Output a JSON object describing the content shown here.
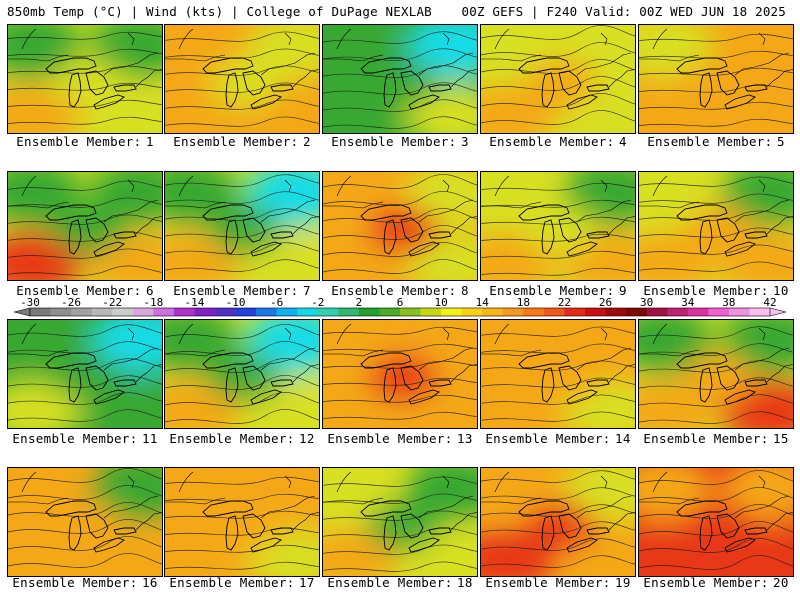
{
  "header": {
    "left": "850mb Temp (°C) | Wind (kts) | College of DuPage NEXLAB",
    "right": "00Z GEFS | F240 Valid: 00Z WED JUN 18 2025"
  },
  "member_label": "Ensemble Member:",
  "colorbar": {
    "ticks": [
      "-30",
      "-26",
      "-22",
      "-18",
      "-14",
      "-10",
      "-6",
      "-2",
      "2",
      "6",
      "10",
      "14",
      "18",
      "22",
      "26",
      "30",
      "34",
      "38",
      "42"
    ],
    "colors": [
      "#7a7a7a",
      "#8e8e8e",
      "#a2a2a2",
      "#b8b8b8",
      "#cccccc",
      "#d8a8e0",
      "#d070e0",
      "#b030d0",
      "#8020c8",
      "#5030c8",
      "#2040e0",
      "#1a78e8",
      "#12b0ec",
      "#18d8e8",
      "#30d0b0",
      "#30b870",
      "#22a030",
      "#4cab28",
      "#88c020",
      "#c8d810",
      "#f4f01c",
      "#f8d018",
      "#f8b418",
      "#f89820",
      "#f87818",
      "#f05818",
      "#e82818",
      "#c81010",
      "#a00808",
      "#800808",
      "#a01040",
      "#c02070",
      "#e030a0",
      "#f060d0",
      "#f090e0",
      "#f8c0f0"
    ]
  },
  "members": [
    {
      "id": "1",
      "dom": "Y",
      "tl": "G",
      "tr": "G",
      "bl": "O",
      "br": "Y",
      "cm": "Y"
    },
    {
      "id": "2",
      "dom": "O",
      "tl": "O",
      "tr": "Y",
      "bl": "O",
      "br": "O",
      "cm": "Y"
    },
    {
      "id": "3",
      "dom": "G",
      "tl": "G",
      "tr": "C",
      "bl": "G",
      "br": "Y",
      "cm": "G"
    },
    {
      "id": "4",
      "dom": "Y",
      "tl": "Y",
      "tr": "Y",
      "bl": "O",
      "br": "Y",
      "cm": "O"
    },
    {
      "id": "5",
      "dom": "O",
      "tl": "Y",
      "tr": "O",
      "bl": "O",
      "br": "O",
      "cm": "O"
    },
    {
      "id": "6",
      "dom": "Y",
      "tl": "G",
      "tr": "G",
      "bl": "R",
      "br": "O",
      "cm": "G"
    },
    {
      "id": "7",
      "dom": "Y",
      "tl": "G",
      "tr": "C",
      "bl": "O",
      "br": "Y",
      "cm": "G"
    },
    {
      "id": "8",
      "dom": "O",
      "tl": "O",
      "tr": "Y",
      "bl": "O",
      "br": "Y",
      "cm": "R"
    },
    {
      "id": "9",
      "dom": "Y",
      "tl": "Y",
      "tr": "G",
      "bl": "O",
      "br": "O",
      "cm": "Y"
    },
    {
      "id": "10",
      "dom": "Y",
      "tl": "Y",
      "tr": "G",
      "bl": "O",
      "br": "O",
      "cm": "O"
    },
    {
      "id": "11",
      "dom": "G",
      "tl": "G",
      "tr": "C",
      "bl": "Y",
      "br": "G",
      "cm": "G"
    },
    {
      "id": "12",
      "dom": "Y",
      "tl": "G",
      "tr": "C",
      "bl": "O",
      "br": "Y",
      "cm": "G"
    },
    {
      "id": "13",
      "dom": "O",
      "tl": "O",
      "tr": "O",
      "bl": "O",
      "br": "O",
      "cm": "R"
    },
    {
      "id": "14",
      "dom": "O",
      "tl": "O",
      "tr": "O",
      "bl": "O",
      "br": "Y",
      "cm": "O"
    },
    {
      "id": "15",
      "dom": "Y",
      "tl": "G",
      "tr": "G",
      "bl": "O",
      "br": "R",
      "cm": "O"
    },
    {
      "id": "16",
      "dom": "O",
      "tl": "O",
      "tr": "G",
      "bl": "O",
      "br": "O",
      "cm": "O"
    },
    {
      "id": "17",
      "dom": "O",
      "tl": "O",
      "tr": "O",
      "bl": "O",
      "br": "Y",
      "cm": "O"
    },
    {
      "id": "18",
      "dom": "Y",
      "tl": "Y",
      "tr": "G",
      "bl": "O",
      "br": "Y",
      "cm": "G"
    },
    {
      "id": "19",
      "dom": "O",
      "tl": "O",
      "tr": "Y",
      "bl": "R",
      "br": "O",
      "cm": "R"
    },
    {
      "id": "20",
      "dom": "R",
      "tl": "O",
      "tr": "O",
      "bl": "R",
      "br": "R",
      "cm": "R"
    }
  ],
  "palette": {
    "C": "#18dce8",
    "G": "#38a830",
    "Y": "#d8e020",
    "O": "#f4a818",
    "R": "#e83818"
  }
}
